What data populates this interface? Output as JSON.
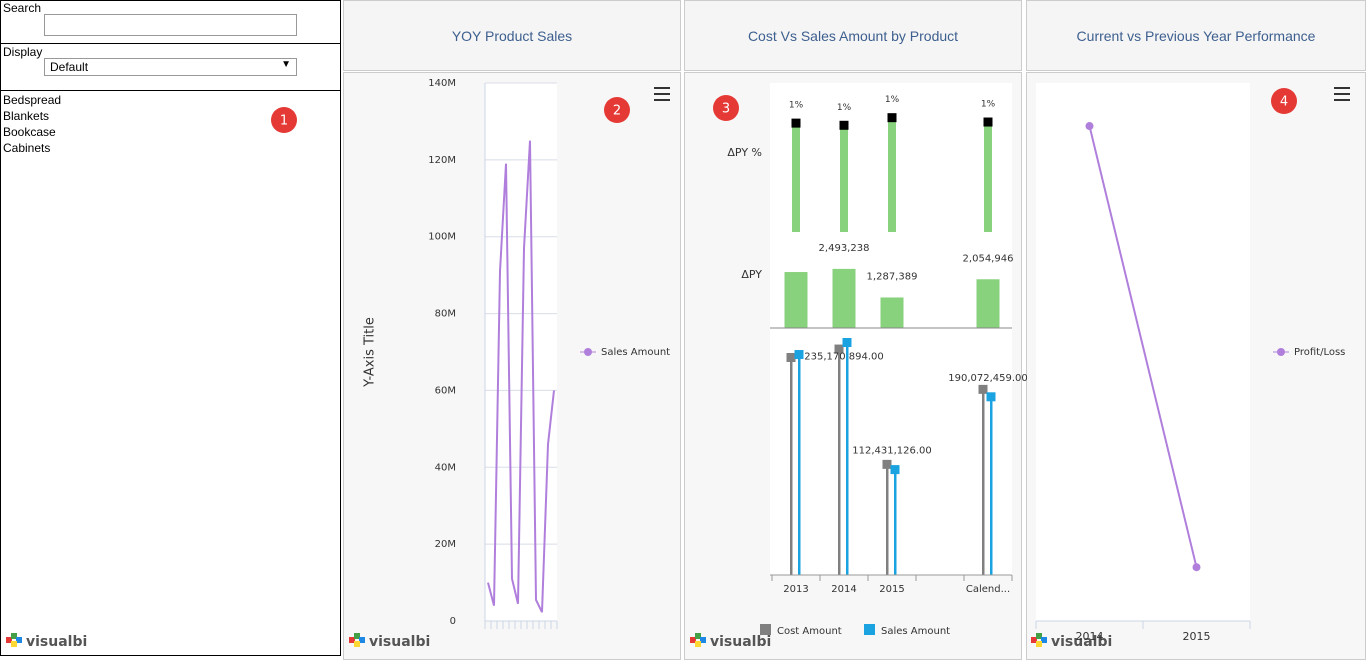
{
  "filter_panel": {
    "search_label": "Search",
    "display_label": "Display",
    "display_value": "Default",
    "items": [
      "Bedspread",
      "Blankets",
      "Bookcase",
      "Cabinets"
    ],
    "badge": "1"
  },
  "logo": "visualbi",
  "badges": [
    "2",
    "3",
    "4"
  ],
  "chart_data": [
    {
      "type": "line",
      "title": "YOY Product Sales",
      "y_label": "Y-Axis Title",
      "categories": [
        null,
        null,
        null,
        null,
        null,
        null,
        null,
        null,
        null,
        null,
        null,
        null
      ],
      "series": [
        {
          "name": "Sales Amount",
          "color": "#b07fdc",
          "values": [
            10000000,
            4000000,
            91000000,
            119000000,
            11000000,
            4500000,
            97000000,
            125000000,
            5500000,
            2300000,
            46000000,
            60000000
          ]
        }
      ],
      "ylim": [
        0,
        140000000
      ],
      "yticks": [
        0,
        {
          "value": 20000000,
          "label": "20M"
        },
        {
          "value": 40000000,
          "label": "40M"
        },
        {
          "value": 60000000,
          "label": "60M"
        },
        {
          "value": 80000000,
          "label": "80M"
        },
        {
          "value": 100000000,
          "label": "100M"
        },
        {
          "value": 120000000,
          "label": "120M"
        },
        {
          "value": 140000000,
          "label": "140M"
        }
      ],
      "grid": true,
      "markers": false,
      "legend": "right"
    },
    {
      "type": "combo",
      "title": "Cost Vs Sales Amount by Product",
      "categories": [
        "2013",
        "2014",
        "2015",
        null,
        "Calend..."
      ],
      "pct_row": {
        "name": "ΔPY %",
        "color": "#88d17d",
        "values": [
          1.0,
          0.98,
          1.05,
          null,
          1.01
        ],
        "value_labels": [
          "1%",
          "1%",
          "1%",
          null,
          "1%"
        ],
        "ylim": [
          0,
          1.35
        ]
      },
      "delta_row": {
        "name": "ΔPY",
        "color": "#88d17d",
        "values": [
          2360000,
          2493238,
          1287389,
          null,
          2054946
        ],
        "value_labels": [
          null,
          "2,493,238",
          "1,287,389",
          null,
          "2,054,946"
        ],
        "ylim": [
          0,
          3500000
        ]
      },
      "series": [
        {
          "name": "Cost Amount",
          "color": "#808080",
          "values": [
            232000000,
            241000000,
            118000000,
            null,
            198000000
          ]
        },
        {
          "name": "Sales Amount",
          "color": "#1aa3e0",
          "values": [
            235170894,
            248000000,
            112431126,
            null,
            190072459
          ],
          "value_labels": [
            "235,170,894.00",
            null,
            "112,431,126.00",
            null,
            "190,072,459.00"
          ]
        }
      ],
      "ylim": [
        0,
        256000000
      ],
      "legend": "bottom"
    },
    {
      "type": "line",
      "title": "Current vs Previous Year Performance",
      "categories": [
        "2014",
        "2015"
      ],
      "series": [
        {
          "name": "Profit/Loss",
          "color": "#b07fdc",
          "values": [
            92,
            10
          ]
        }
      ],
      "ylim": [
        0,
        100
      ],
      "grid": false,
      "markers": true,
      "legend": "right"
    }
  ]
}
